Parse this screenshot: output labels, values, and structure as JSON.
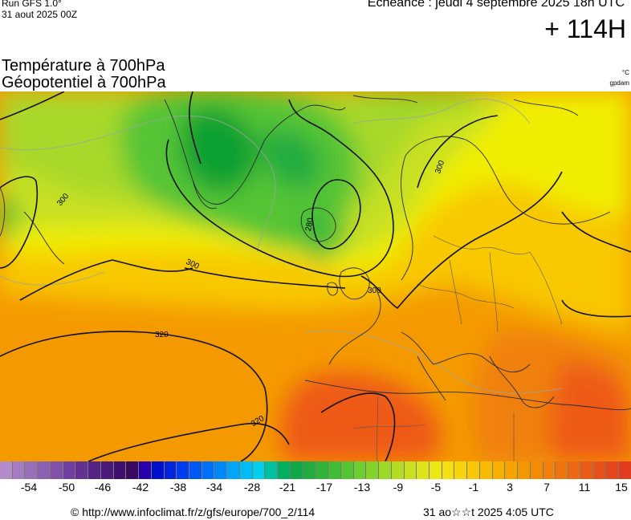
{
  "header": {
    "run_label": "Run GFS 1.0°",
    "run_date": "31 aout 2025 00Z",
    "valid_label": "Echéance : jeudi 4 septembre 2025 18h UTC",
    "lead_time": "+ 114H"
  },
  "titles": {
    "line1": "Température à 700hPa",
    "line2": "Géopotentiel à 700hPa",
    "unit_temperature": "°C",
    "unit_geopotential": "gpdam"
  },
  "map": {
    "contour_labels": [
      "280",
      "300",
      "300",
      "300",
      "300",
      "320",
      "320"
    ],
    "palette": {
      "green_dark": "#10a030",
      "green": "#3cbc3c",
      "lime": "#a8d82a",
      "yellow": "#f0ee00",
      "gold": "#f8c800",
      "orange": "#f49a00",
      "red_orange": "#ee5a12"
    }
  },
  "colorbar": {
    "colors": [
      "#b28cc8",
      "#a57cc0",
      "#9870b8",
      "#8c60b0",
      "#7f52a8",
      "#7040a0",
      "#623090",
      "#542484",
      "#4a1a78",
      "#3e106c",
      "#3a0a60",
      "#2a00aa",
      "#0010cc",
      "#0024e0",
      "#003cf0",
      "#0058f4",
      "#0070f8",
      "#0088f8",
      "#00a4f8",
      "#00bcf4",
      "#00d0ec",
      "#00c0a0",
      "#00b060",
      "#10a848",
      "#20ac40",
      "#30b43c",
      "#40bc38",
      "#54c434",
      "#6ccc30",
      "#84d22c",
      "#9cd828",
      "#b4dc24",
      "#c8e020",
      "#dce41c",
      "#ece818",
      "#f4e010",
      "#f8d40c",
      "#f8c808",
      "#f8bc04",
      "#f8b000",
      "#f6a400",
      "#f49800",
      "#f28c04",
      "#f0800a",
      "#ee740e",
      "#ec6812",
      "#ea5c16",
      "#e8501a",
      "#e6461c",
      "#e23c1e"
    ],
    "labels": [
      "-54",
      "-50",
      "-46",
      "-42",
      "-38",
      "-34",
      "-28",
      "-21",
      "-17",
      "-13",
      "-9",
      "-5",
      "-1",
      "3",
      "7",
      "11",
      "15"
    ]
  },
  "footer": {
    "credit": "© http://www.infoclimat.fr/z/gfs/europe/700_2/114",
    "generated": "31 ao☆☆t 2025  4:05 UTC"
  }
}
